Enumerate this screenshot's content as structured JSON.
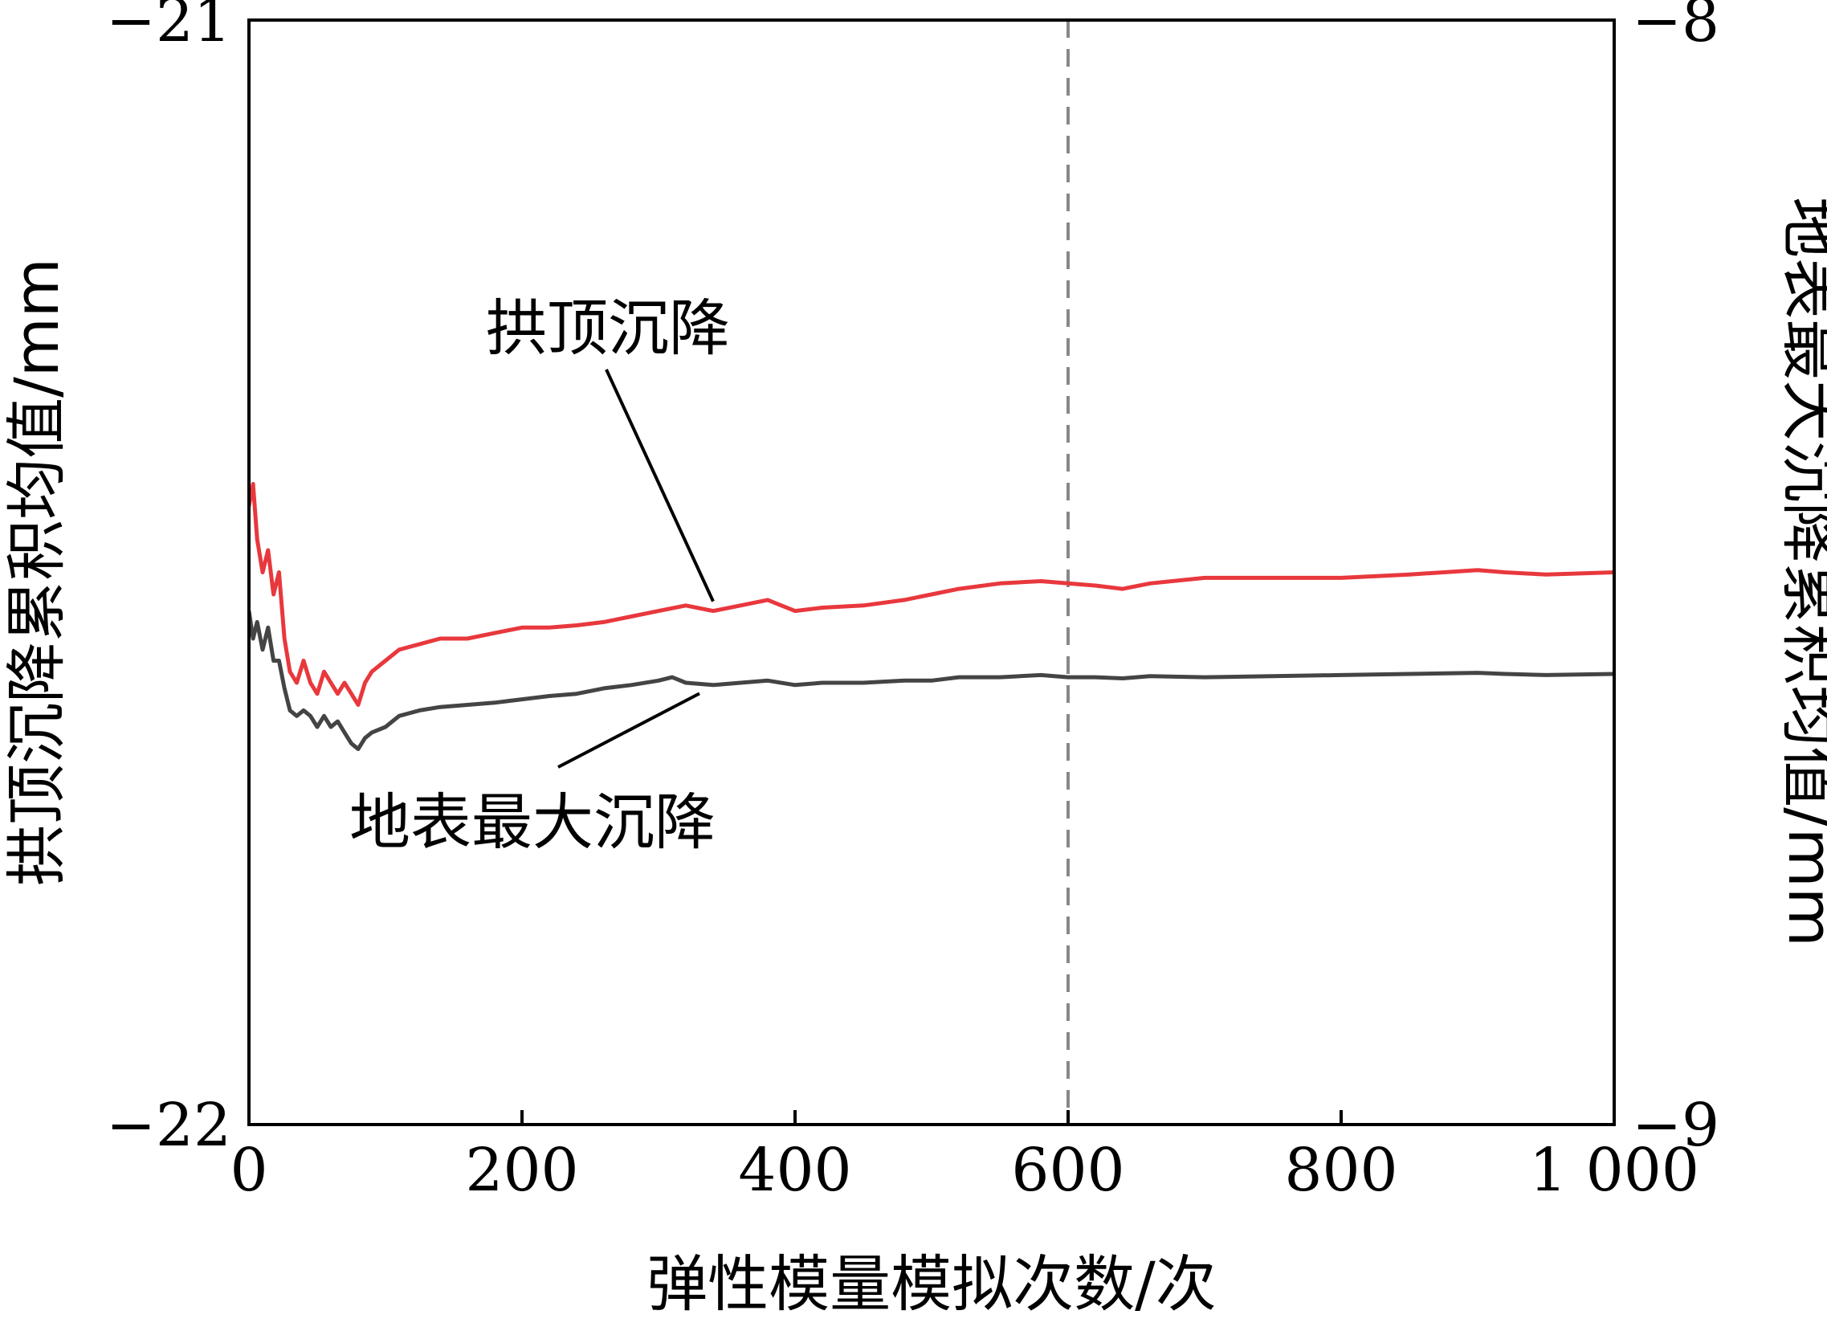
{
  "chart_data": {
    "type": "line",
    "xlabel": "弹性模量模拟次数/次",
    "ylabel_left": "拱顶沉降累积均值/mm",
    "ylabel_right": "地表最大沉降累积均值/mm",
    "xlim": [
      0,
      1000
    ],
    "ylim_left": [
      -22,
      -21
    ],
    "ylim_right": [
      -9,
      -8
    ],
    "x_ticks": [
      "0",
      "200",
      "400",
      "600",
      "800",
      "1 000"
    ],
    "y_left_ticks": [
      "−21",
      "−22"
    ],
    "y_right_ticks": [
      "−8",
      "−9"
    ],
    "reference_line": {
      "x": 600,
      "style": "dashed"
    },
    "grid": false,
    "series": [
      {
        "name": "拱顶沉降",
        "axis": "left",
        "color": "#e8383d",
        "x": [
          0,
          3,
          6,
          10,
          14,
          18,
          22,
          26,
          30,
          35,
          40,
          45,
          50,
          55,
          60,
          65,
          70,
          75,
          80,
          85,
          90,
          100,
          110,
          125,
          140,
          160,
          180,
          200,
          220,
          240,
          260,
          280,
          300,
          320,
          340,
          360,
          380,
          390,
          400,
          420,
          450,
          480,
          500,
          520,
          550,
          580,
          600,
          620,
          640,
          660,
          700,
          750,
          800,
          850,
          900,
          920,
          950,
          1000
        ],
        "values": [
          -21.44,
          -21.42,
          -21.47,
          -21.5,
          -21.48,
          -21.52,
          -21.5,
          -21.56,
          -21.59,
          -21.6,
          -21.58,
          -21.6,
          -21.61,
          -21.59,
          -21.6,
          -21.61,
          -21.6,
          -21.61,
          -21.62,
          -21.6,
          -21.59,
          -21.58,
          -21.57,
          -21.565,
          -21.56,
          -21.56,
          -21.555,
          -21.55,
          -21.55,
          -21.548,
          -21.545,
          -21.54,
          -21.535,
          -21.53,
          -21.535,
          -21.53,
          -21.525,
          -21.53,
          -21.535,
          -21.532,
          -21.53,
          -21.525,
          -21.52,
          -21.515,
          -21.51,
          -21.508,
          -21.51,
          -21.512,
          -21.515,
          -21.51,
          -21.505,
          -21.505,
          -21.505,
          -21.502,
          -21.498,
          -21.5,
          -21.502,
          -21.5
        ]
      },
      {
        "name": "地表最大沉降",
        "axis": "right",
        "color": "#444444",
        "x": [
          0,
          3,
          6,
          10,
          14,
          18,
          22,
          26,
          30,
          35,
          40,
          45,
          50,
          55,
          60,
          65,
          70,
          75,
          80,
          85,
          90,
          100,
          110,
          125,
          140,
          160,
          180,
          200,
          220,
          240,
          260,
          280,
          300,
          310,
          320,
          340,
          360,
          380,
          400,
          420,
          450,
          480,
          500,
          520,
          550,
          580,
          600,
          620,
          640,
          660,
          700,
          750,
          800,
          850,
          900,
          920,
          950,
          1000
        ],
        "values": [
          -8.535,
          -8.56,
          -8.545,
          -8.57,
          -8.55,
          -8.58,
          -8.58,
          -8.605,
          -8.625,
          -8.63,
          -8.625,
          -8.63,
          -8.64,
          -8.63,
          -8.64,
          -8.635,
          -8.645,
          -8.655,
          -8.66,
          -8.65,
          -8.645,
          -8.64,
          -8.63,
          -8.625,
          -8.622,
          -8.62,
          -8.618,
          -8.615,
          -8.612,
          -8.61,
          -8.605,
          -8.602,
          -8.598,
          -8.595,
          -8.6,
          -8.602,
          -8.6,
          -8.598,
          -8.602,
          -8.6,
          -8.6,
          -8.598,
          -8.598,
          -8.595,
          -8.595,
          -8.593,
          -8.595,
          -8.595,
          -8.596,
          -8.594,
          -8.595,
          -8.594,
          -8.593,
          -8.592,
          -8.591,
          -8.592,
          -8.593,
          -8.592
        ]
      }
    ],
    "annotations": [
      {
        "text": "拱顶沉降",
        "series": 0,
        "target_x": 340
      },
      {
        "text": "地表最大沉降",
        "series": 1,
        "target_x": 330
      }
    ]
  }
}
